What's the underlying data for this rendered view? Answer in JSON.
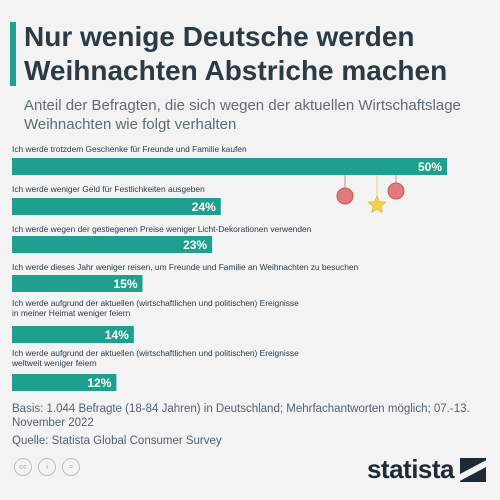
{
  "title": "Nur wenige Deutsche werden Weihnachten Abstriche machen",
  "subtitle": "Anteil der Befragten, die sich wegen der aktuellen Wirtschaftslage Weihnachten wie folgt verhalten",
  "chart_data": {
    "type": "bar",
    "orientation": "horizontal",
    "categories": [
      "Ich werde trotzdem Geschenke für Freunde und Familie kaufen",
      "Ich werde weniger Geld für Festlichkeiten ausgeben",
      "Ich werde wegen der gestiegenen Preise weniger Licht-Dekorationen verwenden",
      "Ich werde dieses Jahr weniger reisen, um Freunde und Familie an Weihnachten zu besuchen",
      [
        "Ich werde aufgrund der aktuellen (wirtschaftlichen und politischen) Ereignisse",
        "in meiner Heimat weniger feiern"
      ],
      [
        "Ich werde aufgrund der aktuellen (wirtschaftlichen und politischen) Ereignisse",
        "weltweit weniger feiern"
      ]
    ],
    "values": [
      50,
      24,
      23,
      15,
      14,
      12
    ],
    "value_labels": [
      "50%",
      "24%",
      "23%",
      "15%",
      "14%",
      "12%"
    ],
    "xlim": [
      0,
      50
    ],
    "bar_color": "#1fa08e",
    "grid": false,
    "legend": "none"
  },
  "notes": {
    "basis": "Basis: 1.044 Befragte (18-84 Jahren) in Deutschland; Mehrfachantworten möglich; 07.-13. November 2022",
    "source": "Quelle: Statista Global Consumer Survey"
  },
  "license_icons": [
    "cc-icon",
    "person-icon",
    "equals-icon"
  ],
  "logo": {
    "text": "statista",
    "icon": "statista-logo-icon"
  },
  "colors": {
    "accent": "#1fa08e",
    "background": "#f3f3f3",
    "text": "#2b3a45",
    "ornament_red": "#e07a7f",
    "ornament_star": "#f3d34a"
  }
}
